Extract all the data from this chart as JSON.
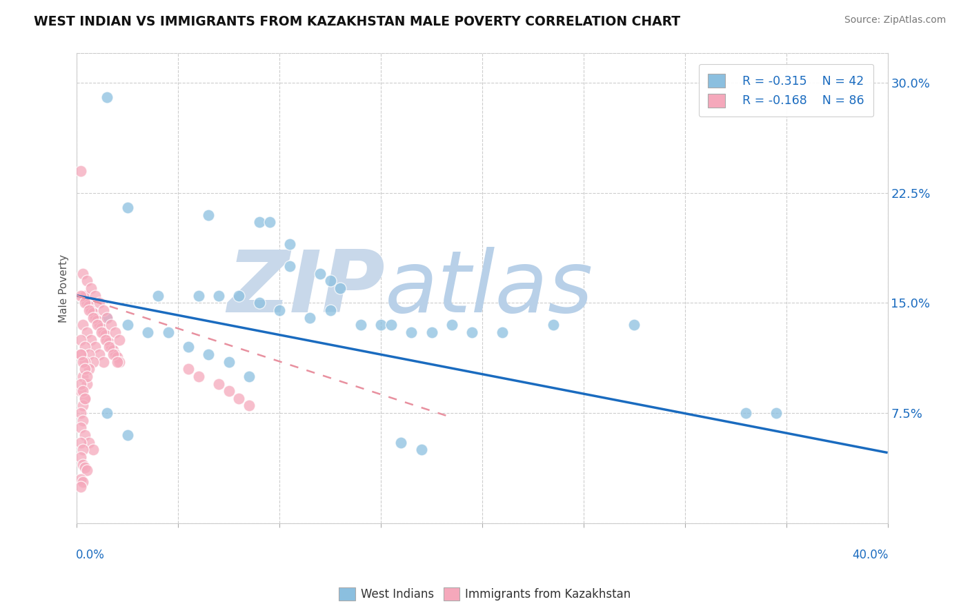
{
  "title": "WEST INDIAN VS IMMIGRANTS FROM KAZAKHSTAN MALE POVERTY CORRELATION CHART",
  "source": "Source: ZipAtlas.com",
  "ylabel": "Male Poverty",
  "xlim": [
    0.0,
    0.4
  ],
  "ylim": [
    0.0,
    0.32
  ],
  "yticks": [
    0.0,
    0.075,
    0.15,
    0.225,
    0.3
  ],
  "ytick_labels": [
    "",
    "7.5%",
    "15.0%",
    "22.5%",
    "30.0%"
  ],
  "legend_r1": "R = -0.315",
  "legend_n1": "N = 42",
  "legend_r2": "R = -0.168",
  "legend_n2": "N = 86",
  "blue_color": "#8bbfdf",
  "pink_color": "#f5a8bb",
  "line_blue": "#1a6bbf",
  "line_pink": "#e8909f",
  "text_color": "#1a6bbf",
  "watermark_zip": "ZIP",
  "watermark_atlas": "atlas",
  "watermark_color_zip": "#c8d8ea",
  "watermark_color_atlas": "#b8d0e8",
  "blue_line_x0": 0.0,
  "blue_line_y0": 0.155,
  "blue_line_x1": 0.4,
  "blue_line_y1": 0.048,
  "pink_line_x0": 0.0,
  "pink_line_y0": 0.155,
  "pink_line_x1": 0.185,
  "pink_line_y1": 0.072,
  "blue_scatter_x": [
    0.015,
    0.025,
    0.065,
    0.09,
    0.095,
    0.105,
    0.105,
    0.12,
    0.125,
    0.13,
    0.04,
    0.06,
    0.07,
    0.08,
    0.09,
    0.1,
    0.115,
    0.125,
    0.14,
    0.15,
    0.155,
    0.165,
    0.175,
    0.185,
    0.195,
    0.21,
    0.235,
    0.275,
    0.015,
    0.025,
    0.035,
    0.045,
    0.055,
    0.065,
    0.075,
    0.085,
    0.015,
    0.025,
    0.33,
    0.345,
    0.16,
    0.17
  ],
  "blue_scatter_y": [
    0.29,
    0.215,
    0.21,
    0.205,
    0.205,
    0.19,
    0.175,
    0.17,
    0.165,
    0.16,
    0.155,
    0.155,
    0.155,
    0.155,
    0.15,
    0.145,
    0.14,
    0.145,
    0.135,
    0.135,
    0.135,
    0.13,
    0.13,
    0.135,
    0.13,
    0.13,
    0.135,
    0.135,
    0.14,
    0.135,
    0.13,
    0.13,
    0.12,
    0.115,
    0.11,
    0.1,
    0.075,
    0.06,
    0.075,
    0.075,
    0.055,
    0.05
  ],
  "pink_scatter_x": [
    0.002,
    0.003,
    0.004,
    0.005,
    0.006,
    0.007,
    0.008,
    0.009,
    0.01,
    0.011,
    0.012,
    0.013,
    0.014,
    0.015,
    0.016,
    0.017,
    0.018,
    0.019,
    0.02,
    0.021,
    0.003,
    0.005,
    0.007,
    0.009,
    0.011,
    0.013,
    0.015,
    0.017,
    0.019,
    0.021,
    0.002,
    0.004,
    0.006,
    0.008,
    0.01,
    0.012,
    0.014,
    0.016,
    0.018,
    0.02,
    0.003,
    0.005,
    0.007,
    0.009,
    0.011,
    0.013,
    0.002,
    0.004,
    0.006,
    0.008,
    0.002,
    0.004,
    0.006,
    0.003,
    0.005,
    0.002,
    0.004,
    0.003,
    0.002,
    0.003,
    0.002,
    0.004,
    0.006,
    0.008,
    0.055,
    0.06,
    0.07,
    0.075,
    0.08,
    0.085,
    0.002,
    0.003,
    0.004,
    0.005,
    0.002,
    0.003,
    0.004,
    0.002,
    0.003,
    0.002,
    0.003,
    0.004,
    0.005,
    0.002,
    0.003,
    0.002
  ],
  "pink_scatter_y": [
    0.24,
    0.155,
    0.155,
    0.15,
    0.148,
    0.145,
    0.143,
    0.14,
    0.138,
    0.135,
    0.133,
    0.13,
    0.128,
    0.125,
    0.123,
    0.12,
    0.118,
    0.115,
    0.113,
    0.11,
    0.17,
    0.165,
    0.16,
    0.155,
    0.15,
    0.145,
    0.14,
    0.135,
    0.13,
    0.125,
    0.155,
    0.15,
    0.145,
    0.14,
    0.135,
    0.13,
    0.125,
    0.12,
    0.115,
    0.11,
    0.135,
    0.13,
    0.125,
    0.12,
    0.115,
    0.11,
    0.125,
    0.12,
    0.115,
    0.11,
    0.115,
    0.11,
    0.105,
    0.1,
    0.095,
    0.09,
    0.085,
    0.08,
    0.075,
    0.07,
    0.065,
    0.06,
    0.055,
    0.05,
    0.105,
    0.1,
    0.095,
    0.09,
    0.085,
    0.08,
    0.115,
    0.11,
    0.105,
    0.1,
    0.095,
    0.09,
    0.085,
    0.055,
    0.05,
    0.045,
    0.04,
    0.038,
    0.036,
    0.03,
    0.028,
    0.025
  ]
}
